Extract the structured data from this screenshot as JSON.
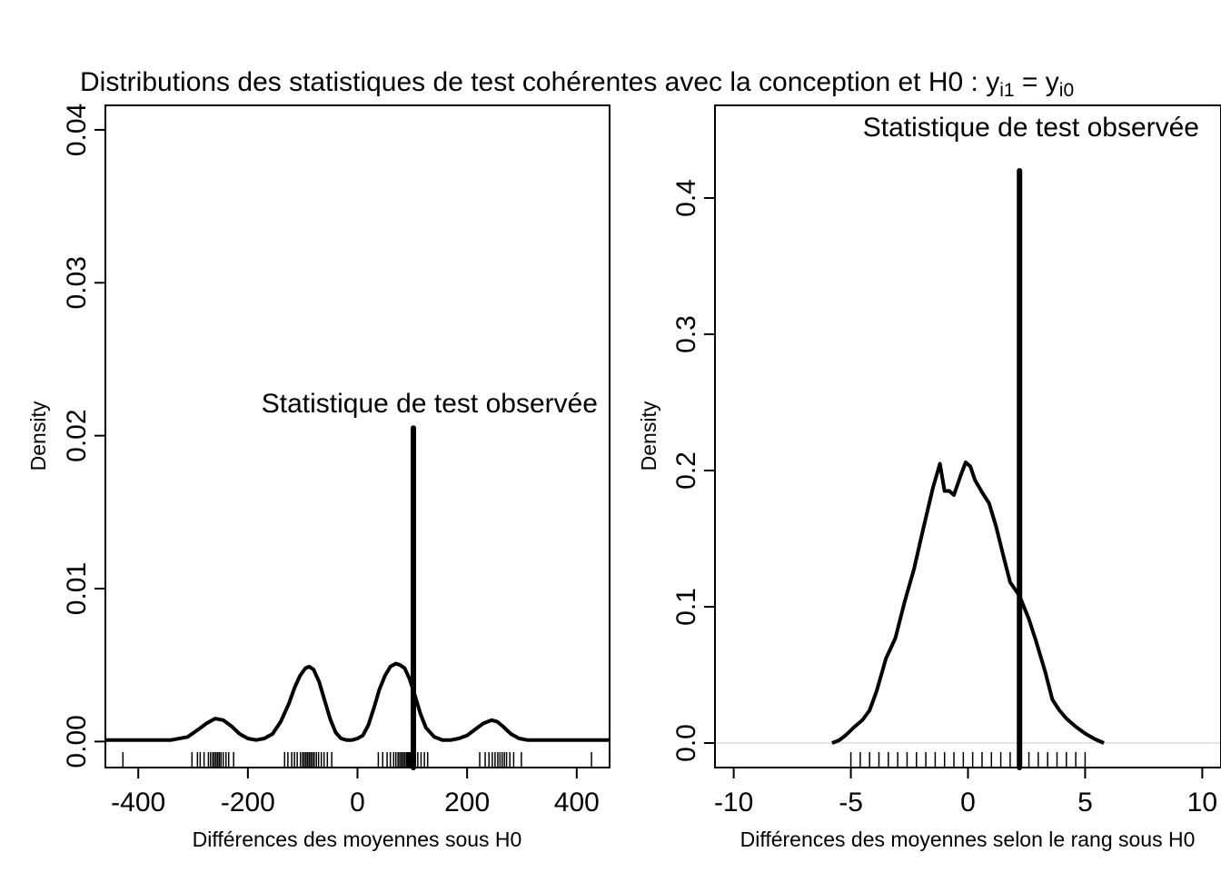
{
  "title_main": "Distributions des statistiques de test cohérentes avec la conception et H0 : ",
  "title_y1": "y",
  "title_sub1": "i1",
  "title_eq": " = ",
  "title_y0": "y",
  "title_sub0": "i0",
  "chart_data": [
    {
      "type": "line",
      "xlabel": "Différences des moyennes sous H0",
      "ylabel": "Density",
      "xlim": [
        -460,
        460
      ],
      "ylim": [
        -0.0017,
        0.0416
      ],
      "xticks": [
        -400,
        -200,
        0,
        200,
        400
      ],
      "xtick_labels": [
        "-400",
        "-200",
        "0",
        "200",
        "400"
      ],
      "yticks": [
        0.0,
        0.01,
        0.02,
        0.03,
        0.04
      ],
      "ytick_labels": [
        "0.00",
        "0.01",
        "0.02",
        "0.03",
        "0.04"
      ],
      "density_x": [
        -460,
        -420,
        -380,
        -340,
        -310,
        -290,
        -275,
        -260,
        -245,
        -230,
        -215,
        -200,
        -185,
        -170,
        -155,
        -140,
        -125,
        -115,
        -105,
        -95,
        -88,
        -80,
        -70,
        -60,
        -50,
        -40,
        -30,
        -20,
        -10,
        0,
        10,
        20,
        30,
        40,
        50,
        60,
        70,
        78,
        86,
        95,
        105,
        115,
        125,
        140,
        155,
        170,
        185,
        200,
        215,
        230,
        245,
        255,
        265,
        280,
        295,
        310,
        340,
        380,
        420,
        460
      ],
      "density_y": [
        0.0001,
        0.0001,
        0.0001,
        0.0001,
        0.0003,
        0.0008,
        0.0012,
        0.0015,
        0.0014,
        0.001,
        0.0005,
        0.0002,
        0.0001,
        0.0002,
        0.0005,
        0.0013,
        0.0025,
        0.0035,
        0.0043,
        0.0048,
        0.0049,
        0.0047,
        0.0039,
        0.0027,
        0.0015,
        0.0006,
        0.0002,
        0.0001,
        0.0001,
        0.0002,
        0.0004,
        0.0011,
        0.0022,
        0.0034,
        0.0043,
        0.0049,
        0.0051,
        0.005,
        0.0048,
        0.0041,
        0.003,
        0.0018,
        0.0009,
        0.0003,
        0.0001,
        0.0001,
        0.0002,
        0.0004,
        0.0008,
        0.0012,
        0.0014,
        0.0013,
        0.001,
        0.0005,
        0.0002,
        0.0001,
        0.0001,
        0.0001,
        0.0001,
        0.0001
      ],
      "rug": [
        -428,
        -302,
        -292,
        -287,
        -280,
        -272,
        -268,
        -264,
        -261,
        -258,
        -255,
        -252,
        -249,
        -245,
        -240,
        -235,
        -226,
        -133,
        -127,
        -120,
        -115,
        -110,
        -104,
        -100,
        -97,
        -94,
        -91,
        -88,
        -85,
        -82,
        -79,
        -75,
        -71,
        -66,
        -61,
        -55,
        -47,
        38,
        46,
        54,
        60,
        66,
        70,
        74,
        77,
        80,
        83,
        86,
        89,
        91,
        93,
        95,
        97,
        99,
        101,
        103,
        105,
        110,
        116,
        122,
        128,
        223,
        233,
        240,
        246,
        251,
        256,
        260,
        264,
        268,
        272,
        278,
        285,
        299,
        427
      ],
      "observed_stat": 102,
      "observed_top": 0.0205,
      "observed_label": "Statistique de test observée"
    },
    {
      "type": "line",
      "xlabel": "Différences des moyennes selon le rang sous H0",
      "ylabel": "Density",
      "xlim": [
        -10.8,
        10.8
      ],
      "ylim": [
        -0.018,
        0.468
      ],
      "xticks": [
        -10,
        -5,
        0,
        5,
        10
      ],
      "xtick_labels": [
        "-10",
        "-5",
        "0",
        "5",
        "10"
      ],
      "yticks": [
        0.0,
        0.1,
        0.2,
        0.3,
        0.4
      ],
      "ytick_labels": [
        "0.0",
        "0.1",
        "0.2",
        "0.3",
        "0.4"
      ],
      "density_x": [
        -5.8,
        -5.5,
        -5.2,
        -4.9,
        -4.5,
        -4.2,
        -3.9,
        -3.5,
        -3.1,
        -2.7,
        -2.3,
        -1.9,
        -1.5,
        -1.2,
        -1.0,
        -0.8,
        -0.6,
        -0.3,
        -0.1,
        0.1,
        0.3,
        0.6,
        0.9,
        1.2,
        1.5,
        1.8,
        2.2,
        2.6,
        2.9,
        3.3,
        3.6,
        3.9,
        4.2,
        4.6,
        5.0,
        5.4,
        5.8
      ],
      "density_y": [
        0.0,
        0.002,
        0.006,
        0.011,
        0.017,
        0.024,
        0.038,
        0.062,
        0.077,
        0.104,
        0.128,
        0.158,
        0.187,
        0.205,
        0.185,
        0.185,
        0.182,
        0.197,
        0.206,
        0.203,
        0.193,
        0.184,
        0.176,
        0.159,
        0.138,
        0.118,
        0.108,
        0.091,
        0.075,
        0.052,
        0.032,
        0.024,
        0.018,
        0.012,
        0.007,
        0.003,
        0.0
      ],
      "rug": [
        -5,
        -4.6,
        -4.2,
        -3.8,
        -3.4,
        -3,
        -2.6,
        -2.2,
        -1.8,
        -1.4,
        -1,
        -0.6,
        -0.2,
        0.2,
        0.6,
        1,
        1.4,
        1.8,
        2.2,
        2.6,
        3,
        3.4,
        3.8,
        4.2,
        4.6,
        5
      ],
      "observed_stat": 2.2,
      "observed_top": 0.42,
      "observed_label": "Statistique de test observée"
    }
  ]
}
